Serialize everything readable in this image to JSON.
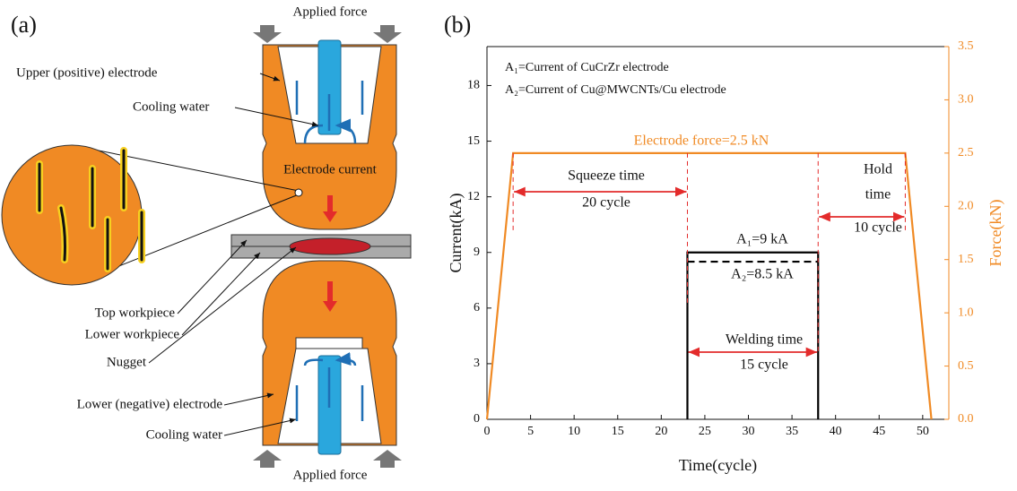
{
  "panel_a": {
    "label": "(a)",
    "labels": [
      "Applied force",
      "Upper (positive) electrode",
      "Cooling water",
      "Electrode current",
      "Top workpiece",
      "Lower workpiece",
      "Nugget",
      "Lower (negative) electrode",
      "Cooling water",
      "Applied force"
    ]
  },
  "chart_data": {
    "type": "line",
    "panel_label": "(b)",
    "x_label": "Time(cycle)",
    "y_label": "Current(kA)",
    "y2_label": "Force(kN)",
    "xlim": [
      0,
      53
    ],
    "xticks": [
      0,
      5,
      10,
      15,
      20,
      25,
      30,
      35,
      40,
      45,
      50
    ],
    "ylim": [
      0,
      20.1
    ],
    "yticks": [
      0,
      3,
      6,
      9,
      12,
      15,
      18
    ],
    "y2lim": [
      0,
      3.5
    ],
    "y2ticks": [
      {
        "value": 0,
        "label": "0.0"
      },
      0.5,
      {
        "value": 1,
        "label": "1.0"
      },
      1.5,
      {
        "value": 2,
        "label": "2.0"
      },
      2.5,
      {
        "value": 3,
        "label": "3.0"
      },
      3.5
    ],
    "series": [
      {
        "color": "#f08a24",
        "axis": "y2",
        "x": [
          0,
          3,
          48,
          51
        ],
        "values": [
          0,
          2.5,
          2.5,
          0
        ]
      },
      {
        "color": "#000000",
        "x": [
          23,
          23,
          38,
          38
        ],
        "values": [
          0,
          9,
          9,
          0
        ]
      },
      {
        "color": "#000000",
        "dashed": true,
        "x": [
          23,
          38
        ],
        "values": [
          8.5,
          8.5
        ]
      }
    ],
    "annotations": [
      "A₁=Current of CuCrZr electrode",
      "A₂=Current of Cu@MWCNTs/Cu electrode",
      "Electrode force=2.5 kN",
      "Squeeze time",
      "20 cycle",
      "Hold",
      "time",
      "10 cycle",
      "A₁=9 kA",
      "A₂=8.5 kA",
      "Welding time",
      "15 cycle"
    ]
  }
}
